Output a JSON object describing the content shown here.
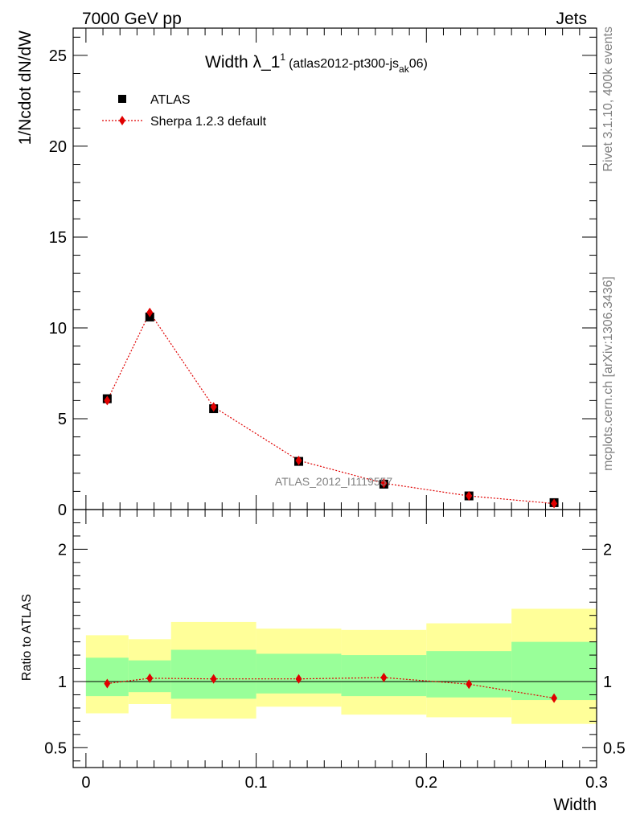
{
  "header": {
    "left": "7000 GeV pp",
    "right": "Jets"
  },
  "title": {
    "main": "Width λ_1",
    "sup": "1",
    "paren_open": "(atlas2012-pt300-js",
    "sub": "ak",
    "paren_close": "06)"
  },
  "side_labels": {
    "rivet": "Rivet 3.1.10,  400k events",
    "mcplots": "mcplots.cern.ch [arXiv:1306.3436]"
  },
  "watermark": "ATLAS_2012_I1119557",
  "legend": [
    {
      "label": "ATLAS"
    },
    {
      "label": "Sherpa 1.2.3 default"
    }
  ],
  "colors": {
    "data": "#000000",
    "mc": "#e00000",
    "band_inner": "#99ff99",
    "band_outer": "#ffff99"
  },
  "chart_data": [
    {
      "type": "scatter",
      "ylabel": "1/Ncdot dN/dW",
      "xlim": [
        -0.0075,
        0.3
      ],
      "ylim": [
        0,
        26.5
      ],
      "yticks_major": [
        0,
        5,
        10,
        15,
        20,
        25
      ],
      "series": [
        {
          "name": "ATLAS",
          "x": [
            0.0125,
            0.0375,
            0.075,
            0.125,
            0.175,
            0.225,
            0.275
          ],
          "y": [
            6.1,
            10.6,
            5.55,
            2.65,
            1.4,
            0.75,
            0.38
          ]
        },
        {
          "name": "Sherpa 1.2.3 default",
          "x": [
            0.0125,
            0.0375,
            0.075,
            0.125,
            0.175,
            0.225,
            0.275
          ],
          "y": [
            6.0,
            10.85,
            5.65,
            2.7,
            1.45,
            0.75,
            0.33
          ]
        }
      ]
    },
    {
      "type": "scatter",
      "ylabel": "Ratio to ATLAS",
      "xlabel": "Width",
      "xlim": [
        -0.0075,
        0.3
      ],
      "ylim": [
        0.35,
        2.3
      ],
      "xticks_major": [
        0,
        0.1,
        0.2,
        0.3
      ],
      "yticks_labeled": [
        0.5,
        1,
        2
      ],
      "bins": [
        [
          0,
          0.025
        ],
        [
          0.025,
          0.05
        ],
        [
          0.05,
          0.1
        ],
        [
          0.1,
          0.15
        ],
        [
          0.15,
          0.2
        ],
        [
          0.2,
          0.25
        ],
        [
          0.25,
          0.3
        ]
      ],
      "band_inner": {
        "low": [
          0.89,
          0.92,
          0.87,
          0.91,
          0.89,
          0.88,
          0.86
        ],
        "high": [
          1.18,
          1.16,
          1.24,
          1.21,
          1.2,
          1.23,
          1.3
        ]
      },
      "band_outer": {
        "low": [
          0.76,
          0.83,
          0.72,
          0.81,
          0.75,
          0.73,
          0.68
        ],
        "high": [
          1.35,
          1.32,
          1.45,
          1.4,
          1.39,
          1.44,
          1.55
        ]
      },
      "series": [
        {
          "name": "Sherpa 1.2.3 default",
          "x": [
            0.0125,
            0.0375,
            0.075,
            0.125,
            0.175,
            0.225,
            0.275
          ],
          "y": [
            0.985,
            1.025,
            1.02,
            1.02,
            1.03,
            0.98,
            0.875
          ]
        }
      ]
    }
  ]
}
